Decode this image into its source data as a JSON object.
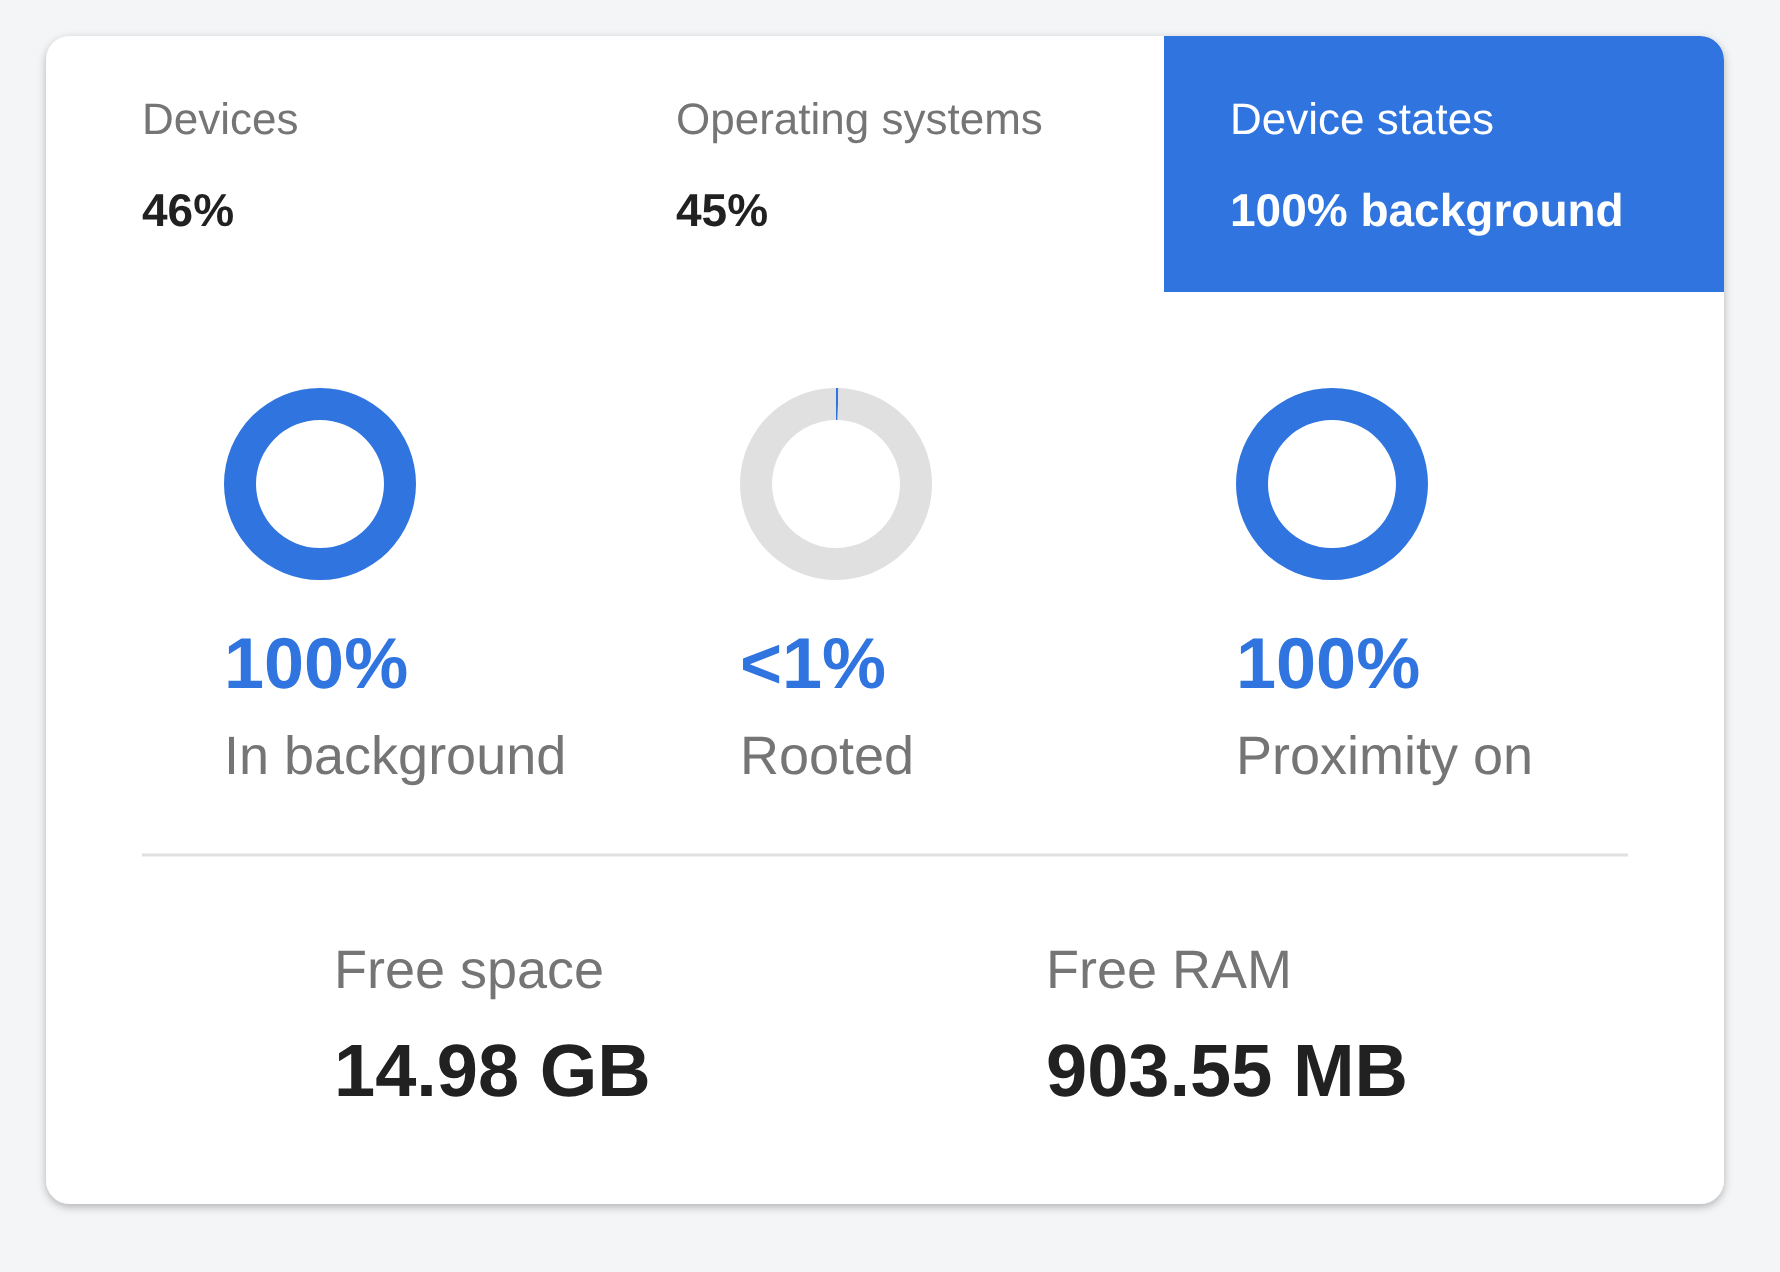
{
  "chart_data": [
    {
      "type": "other",
      "categories": [
        "Devices",
        "Operating systems",
        "Device states"
      ],
      "value_labels": [
        "46%",
        "45%",
        "100% background"
      ],
      "colors": [
        null,
        null,
        "#2f74df"
      ]
    },
    {
      "type": "donut",
      "title": "In background",
      "categories": [
        null
      ],
      "values": [
        100
      ],
      "colors": [
        "#2f74df"
      ],
      "annotations": [
        "100%"
      ]
    },
    {
      "type": "donut",
      "title": "Rooted",
      "categories": [
        null,
        null
      ],
      "values": [
        0.4,
        99.6
      ],
      "colors": [
        "#2f74df",
        "#e0e0e0"
      ],
      "annotations": [
        "<1%"
      ]
    },
    {
      "type": "donut",
      "title": "Proximity on",
      "categories": [
        null
      ],
      "values": [
        100
      ],
      "colors": [
        "#2f74df"
      ],
      "annotations": [
        "100%"
      ]
    },
    {
      "type": "other",
      "categories": [
        "Free space",
        "Free RAM"
      ],
      "value_labels": [
        "14.98 GB",
        "903.55 MB"
      ]
    }
  ]
}
